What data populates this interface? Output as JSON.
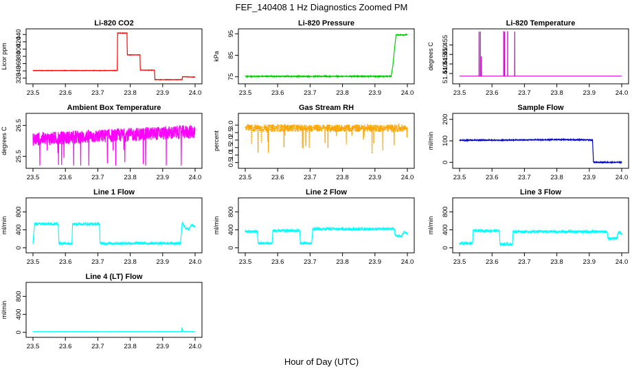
{
  "figure": {
    "title": "FEF_140408  1 Hz Diagnostics Zoomed PM",
    "xlabel": "Hour of Day (UTC)"
  },
  "chart_data": [
    {
      "type": "line",
      "title": "Li-820 CO2",
      "ylabel": "Licor ppm",
      "color": "#ff0000",
      "xlim": [
        23.5,
        24.0
      ],
      "ylim": [
        312,
        448
      ],
      "xticks": [
        "23.5",
        "23.6",
        "23.7",
        "23.8",
        "23.9",
        "24.0"
      ],
      "yticks": [
        "320",
        "340",
        "360",
        "380",
        "400",
        "420",
        "440"
      ],
      "x": [
        23.5,
        23.76,
        23.761,
        23.79,
        23.791,
        23.83,
        23.831,
        23.875,
        23.876,
        23.96,
        23.961,
        24.0
      ],
      "y": [
        341,
        341,
        444,
        444,
        384,
        384,
        342,
        342,
        316,
        316,
        324,
        323
      ],
      "noise": 0.5
    },
    {
      "type": "line",
      "title": "Li-820 Pressure",
      "ylabel": "kPa",
      "color": "#00cc00",
      "xlim": [
        23.5,
        24.0
      ],
      "ylim": [
        73,
        96
      ],
      "xticks": [
        "23.5",
        "23.6",
        "23.7",
        "23.8",
        "23.9",
        "24.0"
      ],
      "yticks": [
        "75",
        "85",
        "95"
      ],
      "x": [
        23.5,
        23.95,
        23.955,
        23.965,
        24.0
      ],
      "y": [
        75.2,
        75.2,
        80,
        94.5,
        94.5
      ],
      "noise": 0.2
    },
    {
      "type": "line",
      "title": "Li-820 Temperature",
      "ylabel": "degrees C",
      "color": "#cc00cc",
      "xlim": [
        23.5,
        24.0
      ],
      "ylim": [
        51.436,
        51.462
      ],
      "xticks": [
        "23.5",
        "23.6",
        "23.7",
        "23.8",
        "23.9",
        "24.0"
      ],
      "yticks": [
        "51.440",
        "51.445",
        "51.450",
        "51.455"
      ],
      "x": [
        23.5,
        23.56,
        23.5601,
        23.5602,
        23.5603,
        23.564,
        23.5641,
        23.5642,
        23.5643,
        23.567,
        23.5671,
        23.5672,
        23.5673,
        23.636,
        23.6361,
        23.6362,
        23.6363,
        23.639,
        23.6391,
        23.6392,
        23.6393,
        23.648,
        23.6481,
        23.6482,
        23.6483,
        23.67,
        23.6701,
        23.6702,
        23.6703,
        24.0
      ],
      "y": [
        51.4386,
        51.4386,
        51.462,
        51.462,
        51.4386,
        51.4386,
        51.462,
        51.462,
        51.4386,
        51.4386,
        51.449,
        51.449,
        51.4386,
        51.4386,
        51.462,
        51.462,
        51.4386,
        51.4386,
        51.462,
        51.462,
        51.4386,
        51.4386,
        51.462,
        51.462,
        51.4386,
        51.4386,
        51.462,
        51.462,
        51.4386,
        51.4386
      ],
      "noise": 0
    },
    {
      "type": "line",
      "title": "Ambient Box Temperature",
      "ylabel": "degrees C",
      "color": "#ff00ff",
      "xlim": [
        23.5,
        24.0
      ],
      "ylim": [
        25.2,
        26.8
      ],
      "xticks": [
        "23.5",
        "23.6",
        "23.7",
        "23.8",
        "23.9",
        "24.0"
      ],
      "yticks": [
        "25.5",
        "26.5"
      ],
      "x": [
        23.5,
        24.0
      ],
      "y": [
        26.05,
        26.3
      ],
      "noise": 0.22,
      "spikes": "down"
    },
    {
      "type": "scatter",
      "title": "Gas Stream RH",
      "ylabel": "percent",
      "color": "#ffa500",
      "xlim": [
        23.5,
        24.0
      ],
      "ylim": [
        0.3,
        3.6
      ],
      "xticks": [
        "23.5",
        "23.6",
        "23.7",
        "23.8",
        "23.9",
        "24.0"
      ],
      "yticks": [
        "0.5",
        "1.0",
        "1.5",
        "2.0",
        "2.5",
        "3.0"
      ],
      "x": [
        23.5,
        24.0
      ],
      "y": [
        2.8,
        2.8
      ],
      "noise": 0.25,
      "spikes": "down"
    },
    {
      "type": "line",
      "title": "Sample Flow",
      "ylabel": "ml/min",
      "color": "#0000cc",
      "xlim": [
        23.5,
        24.0
      ],
      "ylim": [
        -15,
        215
      ],
      "xticks": [
        "23.5",
        "23.6",
        "23.7",
        "23.8",
        "23.9",
        "24.0"
      ],
      "yticks": [
        "0",
        "100",
        "200"
      ],
      "x": [
        23.5,
        23.6,
        23.7,
        23.8,
        23.91,
        23.913,
        23.92,
        24.0
      ],
      "y": [
        103,
        103,
        104,
        106,
        104,
        0,
        0,
        0
      ],
      "noise": 2
    },
    {
      "type": "line",
      "title": "Line 1 Flow",
      "ylabel": "ml/min",
      "color": "#00ffff",
      "xlim": [
        23.5,
        24.0
      ],
      "ylim": [
        -50,
        1050
      ],
      "xticks": [
        "23.5",
        "23.6",
        "23.7",
        "23.8",
        "23.9",
        "24.0"
      ],
      "yticks": [
        "0",
        "400",
        "800"
      ],
      "x": [
        23.5,
        23.505,
        23.578,
        23.58,
        23.62,
        23.622,
        23.705,
        23.707,
        23.955,
        23.96,
        23.97,
        23.98,
        23.99,
        24.0
      ],
      "y": [
        100,
        530,
        530,
        100,
        100,
        530,
        530,
        100,
        100,
        550,
        450,
        400,
        520,
        460
      ],
      "noise": 30
    },
    {
      "type": "line",
      "title": "Line 2 Flow",
      "ylabel": "ml/min",
      "color": "#00ffff",
      "xlim": [
        23.5,
        24.0
      ],
      "ylim": [
        -50,
        1050
      ],
      "xticks": [
        "23.5",
        "23.6",
        "23.7",
        "23.8",
        "23.9",
        "24.0"
      ],
      "yticks": [
        "0",
        "400",
        "800"
      ],
      "x": [
        23.5,
        23.537,
        23.54,
        23.583,
        23.585,
        23.668,
        23.67,
        23.705,
        23.708,
        23.96,
        23.962,
        23.98,
        23.99,
        24.0
      ],
      "y": [
        360,
        360,
        100,
        100,
        380,
        380,
        100,
        100,
        420,
        420,
        280,
        250,
        350,
        310
      ],
      "noise": 30
    },
    {
      "type": "line",
      "title": "Line 3 Flow",
      "ylabel": "ml/min",
      "color": "#00ffff",
      "xlim": [
        23.5,
        24.0
      ],
      "ylim": [
        -50,
        1050
      ],
      "xticks": [
        "23.5",
        "23.6",
        "23.7",
        "23.8",
        "23.9",
        "24.0"
      ],
      "yticks": [
        "0",
        "400",
        "800"
      ],
      "x": [
        23.5,
        23.54,
        23.542,
        23.622,
        23.625,
        23.663,
        23.665,
        23.955,
        23.958,
        23.985,
        23.99,
        24.0
      ],
      "y": [
        100,
        100,
        380,
        380,
        80,
        80,
        360,
        360,
        200,
        220,
        350,
        300
      ],
      "noise": 30
    },
    {
      "type": "line",
      "title": "Line 4 (LT) Flow",
      "ylabel": "ml/min",
      "color": "#00ffff",
      "xlim": [
        23.5,
        24.0
      ],
      "ylim": [
        -50,
        1050
      ],
      "xticks": [
        "23.5",
        "23.6",
        "23.7",
        "23.8",
        "23.9",
        "24.0"
      ],
      "yticks": [
        "0",
        "400",
        "800"
      ],
      "x": [
        23.5,
        23.958,
        23.96,
        23.962,
        24.0
      ],
      "y": [
        15,
        15,
        110,
        20,
        15
      ],
      "noise": 2
    }
  ]
}
